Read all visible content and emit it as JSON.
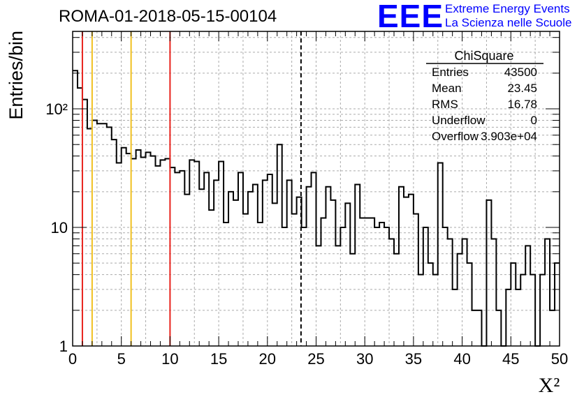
{
  "title": "ROMA-01-2018-05-15-00104",
  "logo": {
    "text": "EEE",
    "line1": "Extreme Energy Events",
    "line2": "La Scienza nelle Scuole",
    "color": "#0000ff"
  },
  "stats": {
    "name": "ChiSquare",
    "rows": [
      {
        "label": "Entries",
        "value": "43500"
      },
      {
        "label": "Mean",
        "value": "23.45"
      },
      {
        "label": "RMS",
        "value": "16.78"
      },
      {
        "label": "Underflow",
        "value": "0"
      },
      {
        "label": "Overflow",
        "value": "3.903e+04"
      }
    ]
  },
  "chart_data": {
    "type": "histogram",
    "xlabel": "X²",
    "ylabel": "Entries/bin",
    "xlim": [
      0,
      50
    ],
    "ylim": [
      1,
      450
    ],
    "yscale": "log",
    "grid": true,
    "xticks": [
      "0",
      "5",
      "10",
      "15",
      "20",
      "25",
      "30",
      "35",
      "40",
      "45",
      "50"
    ],
    "yticks": [
      "1",
      "10",
      "10²"
    ],
    "bin_width": 0.5,
    "counts": [
      210,
      150,
      120,
      68,
      80,
      75,
      75,
      70,
      55,
      35,
      47,
      42,
      38,
      45,
      39,
      43,
      40,
      33,
      37,
      38,
      32,
      29,
      30,
      19,
      37,
      36,
      21,
      29,
      14,
      25,
      36,
      11,
      20,
      17,
      29,
      13,
      20,
      23,
      11,
      25,
      28,
      16,
      50,
      10,
      25,
      13,
      18,
      10,
      22,
      29,
      7,
      12,
      22,
      17,
      7,
      10,
      16,
      6,
      23,
      12,
      12,
      12,
      10,
      11,
      10,
      8,
      6,
      22,
      18,
      19,
      13,
      4,
      10,
      5,
      4,
      35,
      10,
      8,
      3,
      6,
      8,
      5,
      2,
      2,
      1,
      17,
      8,
      2,
      1,
      3,
      5,
      3,
      4,
      7,
      4,
      1,
      4,
      8,
      2,
      5
    ],
    "vlines": [
      {
        "x": 1,
        "color": "#e8221c",
        "style": "solid"
      },
      {
        "x": 2,
        "color": "#f0c020",
        "style": "solid"
      },
      {
        "x": 6,
        "color": "#f0c020",
        "style": "solid"
      },
      {
        "x": 10,
        "color": "#e8221c",
        "style": "solid"
      },
      {
        "x": 23.45,
        "color": "#000000",
        "style": "dashed"
      }
    ]
  }
}
